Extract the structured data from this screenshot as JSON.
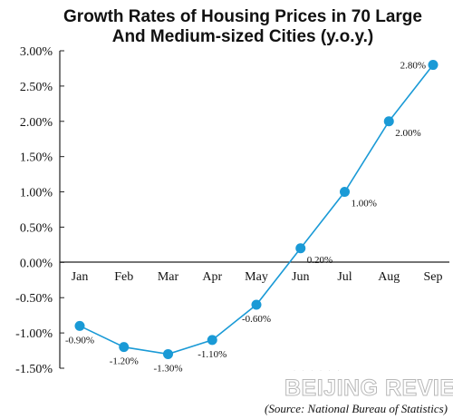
{
  "chart_data": {
    "type": "line",
    "title_lines": [
      "Growth Rates of Housing Prices  in 70 Large",
      "And Medium-sized Cities (y.o.y.)"
    ],
    "xlabel": "",
    "ylabel": "",
    "categories": [
      "Jan",
      "Feb",
      "Mar",
      "Apr",
      "May",
      "Jun",
      "Jul",
      "Aug",
      "Sep"
    ],
    "series": [
      {
        "values": [
          -0.9,
          -1.2,
          -1.3,
          -1.1,
          -0.6,
          0.2,
          1.0,
          2.0,
          2.8
        ],
        "labels": [
          "-0.90%",
          "-1.20%",
          "-1.30%",
          "-1.10%",
          "-0.60%",
          "0.20%",
          "1.00%",
          "2.00%",
          "2.80%"
        ],
        "color": "#1a9ad6"
      }
    ],
    "yticks": [
      3.0,
      2.5,
      2.0,
      1.5,
      1.0,
      0.5,
      0.0,
      -0.5,
      -1.0,
      -1.5
    ],
    "ytick_labels": [
      "3.00%",
      "2.50%",
      "2.00%",
      "1.50%",
      "1.00%",
      "0.50%",
      "0.00%",
      "-0.50%",
      "-1.00%",
      "-1.50%"
    ],
    "ylim": [
      -1.5,
      3.0
    ],
    "grid": false,
    "legend": "none"
  },
  "source": "(Source: National Bureau of Statistics)",
  "watermark": "BEIJING REVIEW",
  "colors": {
    "line": "#1a9ad6",
    "axis": "#222222"
  }
}
